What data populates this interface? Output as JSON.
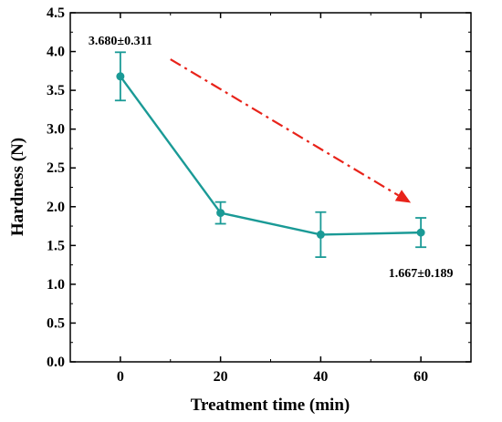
{
  "chart_data": {
    "type": "line",
    "xlabel": "Treatment time (min)",
    "ylabel": "Hardness (N)",
    "xlim": [
      -10,
      70
    ],
    "ylim": [
      0.0,
      4.5
    ],
    "xticks": [
      0,
      20,
      40,
      60
    ],
    "xtick_labels": [
      "0",
      "20",
      "40",
      "60"
    ],
    "yticks": [
      0.0,
      0.5,
      1.0,
      1.5,
      2.0,
      2.5,
      3.0,
      3.5,
      4.0,
      4.5
    ],
    "ytick_labels": [
      "0.0",
      "0.5",
      "1.0",
      "1.5",
      "2.0",
      "2.5",
      "3.0",
      "3.5",
      "4.0",
      "4.5"
    ],
    "grid": false,
    "series": [
      {
        "x": [
          0,
          20,
          40,
          60
        ],
        "y": [
          3.68,
          1.92,
          1.64,
          1.667
        ],
        "error": [
          0.311,
          0.14,
          0.29,
          0.189
        ],
        "color": "#1a9a96"
      }
    ],
    "annotations": [
      {
        "text": "3.680±0.311",
        "x": 0,
        "y": 4.15
      },
      {
        "text": "1.667±0.189",
        "x": 60,
        "y": 1.15
      }
    ],
    "trend_arrow": {
      "color": "#e8231a",
      "from": [
        10,
        3.9
      ],
      "to": [
        58,
        2.05
      ]
    }
  }
}
